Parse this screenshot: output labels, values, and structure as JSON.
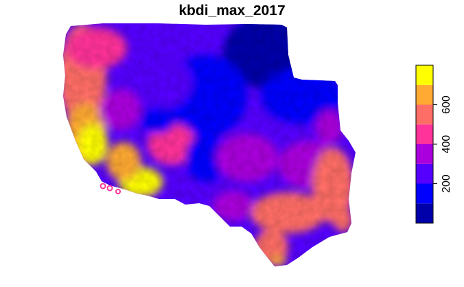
{
  "title": "kbdi_max_2017",
  "legend": {
    "bins": [
      {
        "from": 0,
        "to": 100,
        "color": "#0000AA"
      },
      {
        "from": 100,
        "to": 200,
        "color": "#0000FF"
      },
      {
        "from": 200,
        "to": 300,
        "color": "#5500FF"
      },
      {
        "from": 300,
        "to": 400,
        "color": "#AA00DD"
      },
      {
        "from": 400,
        "to": 500,
        "color": "#FF3399"
      },
      {
        "from": 500,
        "to": 600,
        "color": "#FF6E66"
      },
      {
        "from": 600,
        "to": 700,
        "color": "#FFAA33"
      },
      {
        "from": 700,
        "to": 800,
        "color": "#FFFF00"
      }
    ],
    "ticks": [
      "200",
      "400",
      "600"
    ],
    "tick_values": [
      200,
      400,
      600
    ],
    "range": [
      0,
      800
    ]
  }
}
